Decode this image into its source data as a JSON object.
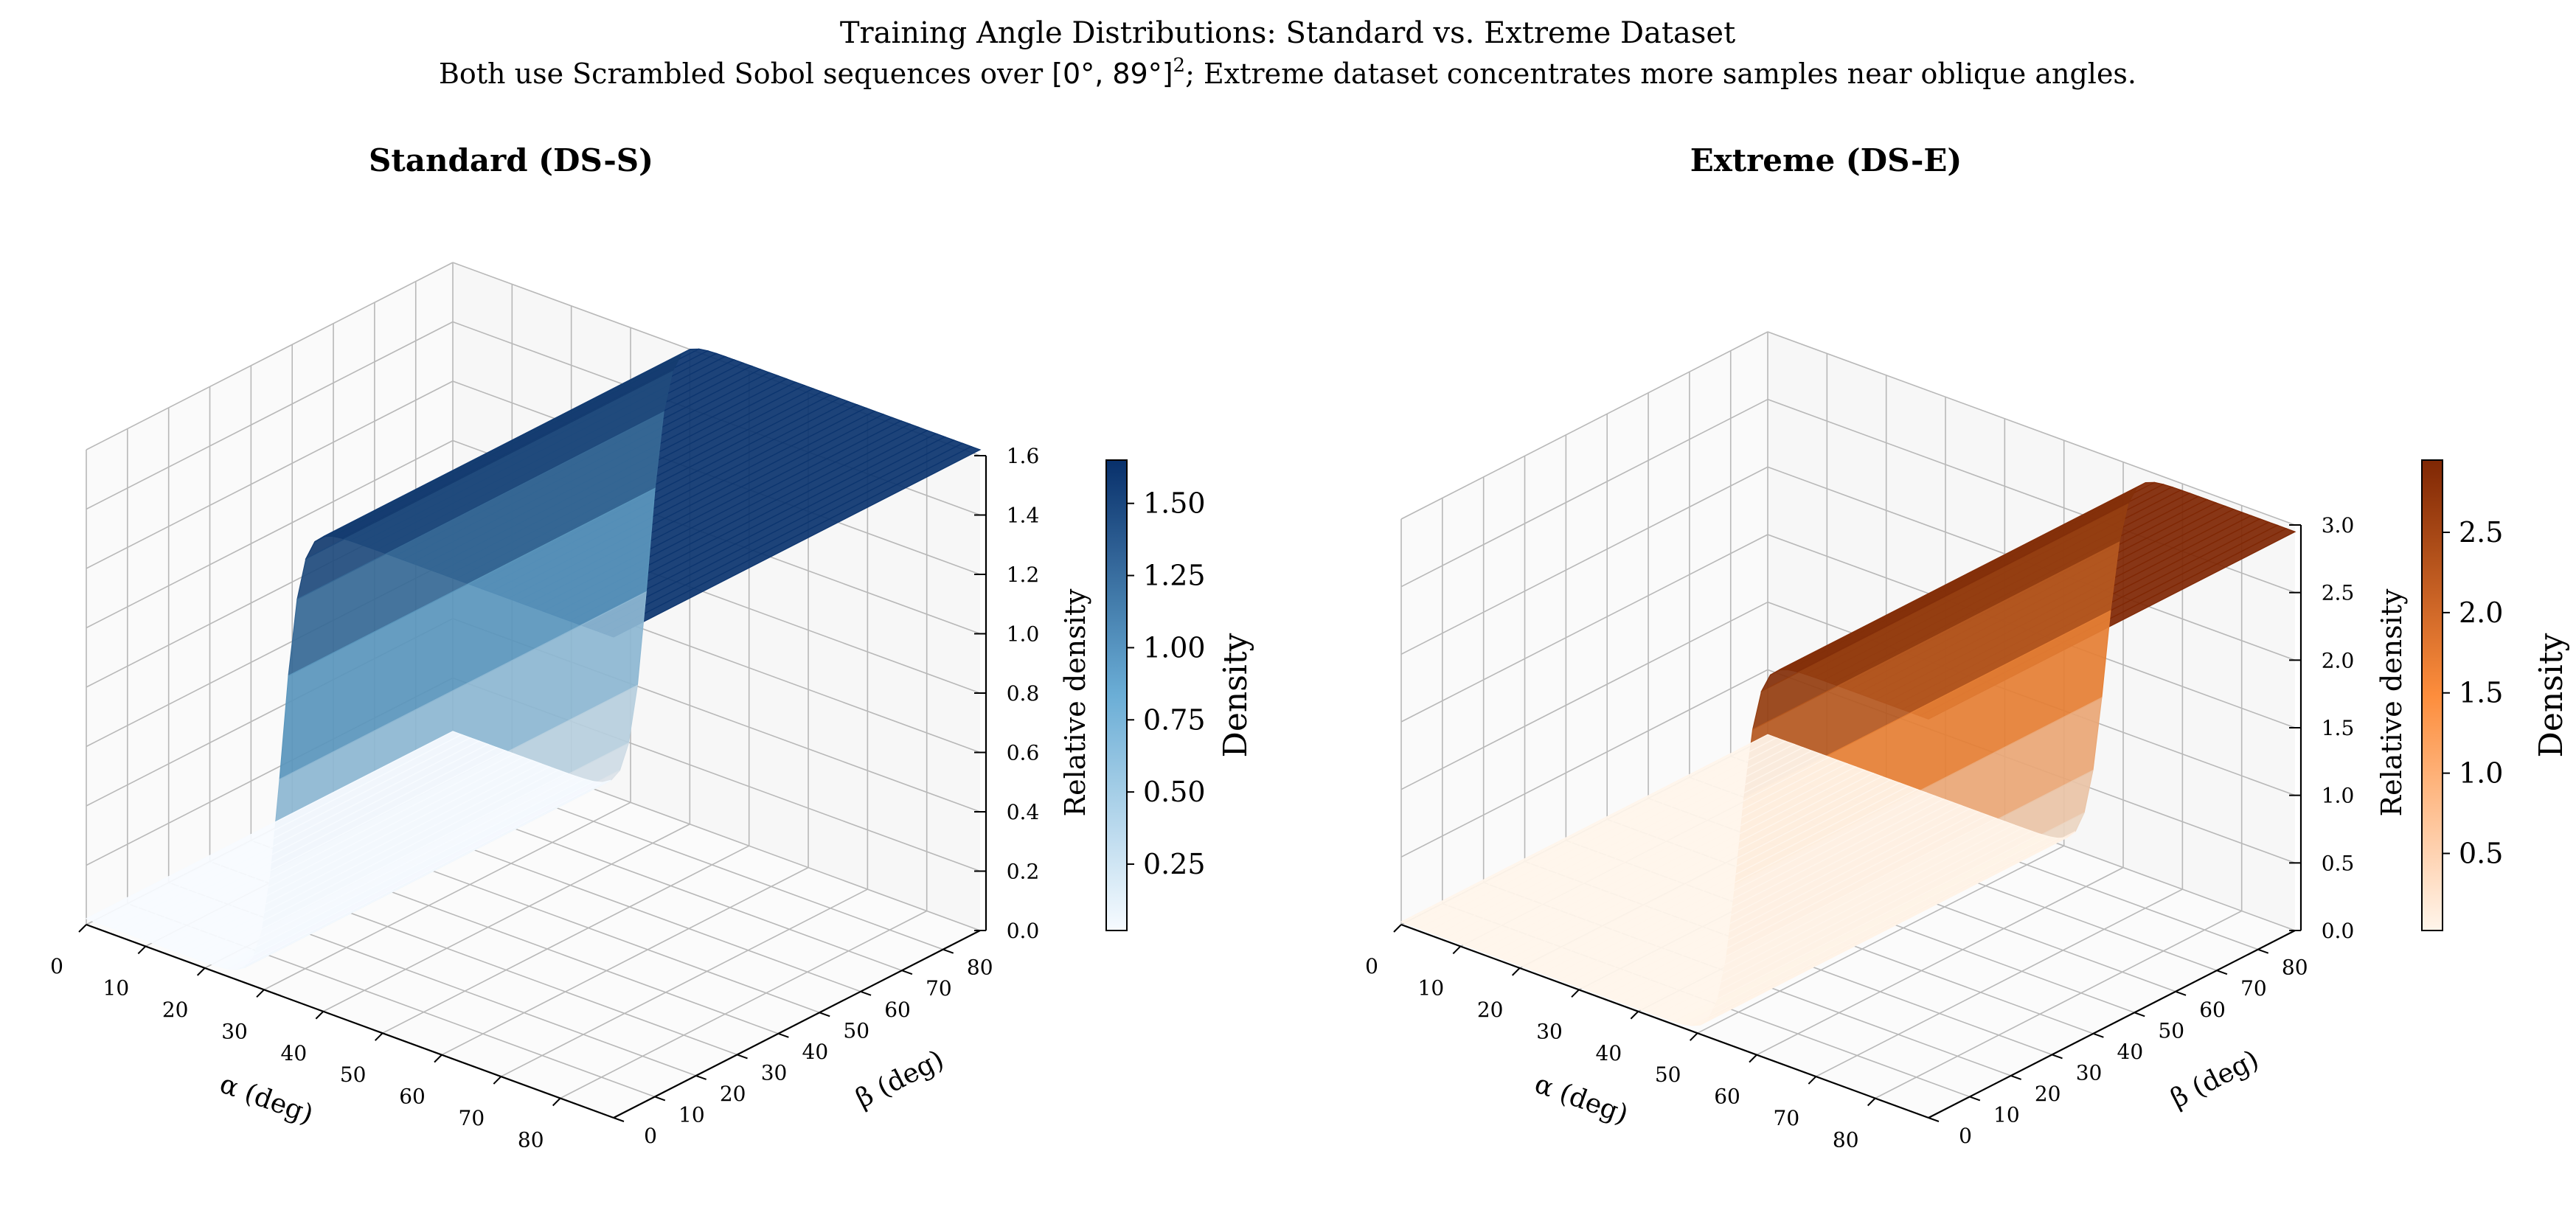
{
  "figure": {
    "title": "Training Angle Distributions: Standard vs. Extreme Dataset",
    "subtitle_pre": "Both use Scrambled Sobol sequences over ",
    "subtitle_math": "[0°, 89°]",
    "subtitle_sup": "2",
    "subtitle_post": "; Extreme dataset concentrates more samples near oblique angles."
  },
  "chart_data": [
    {
      "type": "surface",
      "title": "Standard (DS-S)",
      "colormap": "Blues",
      "colors": {
        "low": "#f7fbff",
        "mid": "#6baed6",
        "high": "#08306b"
      },
      "xlabel": "α (deg)",
      "ylabel": "β (deg)",
      "zlabel": "Relative density",
      "xlim": [
        0,
        89
      ],
      "ylim": [
        0,
        89
      ],
      "zlim": [
        0,
        1.6
      ],
      "x_ticks": [
        "0",
        "10",
        "20",
        "30",
        "40",
        "50",
        "60",
        "70",
        "80"
      ],
      "y_ticks": [
        "0",
        "10",
        "20",
        "30",
        "40",
        "50",
        "60",
        "70",
        "80"
      ],
      "z_ticks": [
        "0.0",
        "0.2",
        "0.4",
        "0.6",
        "0.8",
        "1.0",
        "1.2",
        "1.4",
        "1.6"
      ],
      "density_low": 0.02,
      "density_high": 1.62,
      "transition_alpha_deg": 33,
      "colorbar": {
        "label": "Density",
        "ticks": [
          "0.25",
          "0.50",
          "0.75",
          "1.00",
          "1.25",
          "1.50"
        ],
        "range": [
          0.02,
          1.65
        ]
      }
    },
    {
      "type": "surface",
      "title": "Extreme (DS-E)",
      "colormap": "Oranges",
      "colors": {
        "low": "#fff5eb",
        "mid": "#fd8d3c",
        "high": "#7f2704"
      },
      "xlabel": "α (deg)",
      "ylabel": "β (deg)",
      "zlabel": "Relative density",
      "xlim": [
        0,
        89
      ],
      "ylim": [
        0,
        89
      ],
      "zlim": [
        0,
        3.0
      ],
      "x_ticks": [
        "0",
        "10",
        "20",
        "30",
        "40",
        "50",
        "60",
        "70",
        "80"
      ],
      "y_ticks": [
        "0",
        "10",
        "20",
        "30",
        "40",
        "50",
        "60",
        "70",
        "80"
      ],
      "z_ticks": [
        "0.0",
        "0.5",
        "1.0",
        "1.5",
        "2.0",
        "2.5",
        "3.0"
      ],
      "density_low": 0.02,
      "density_high": 2.95,
      "transition_alpha_deg": 57,
      "colorbar": {
        "label": "Density",
        "ticks": [
          "0.5",
          "1.0",
          "1.5",
          "2.0",
          "2.5"
        ],
        "range": [
          0.02,
          2.95
        ]
      }
    }
  ]
}
